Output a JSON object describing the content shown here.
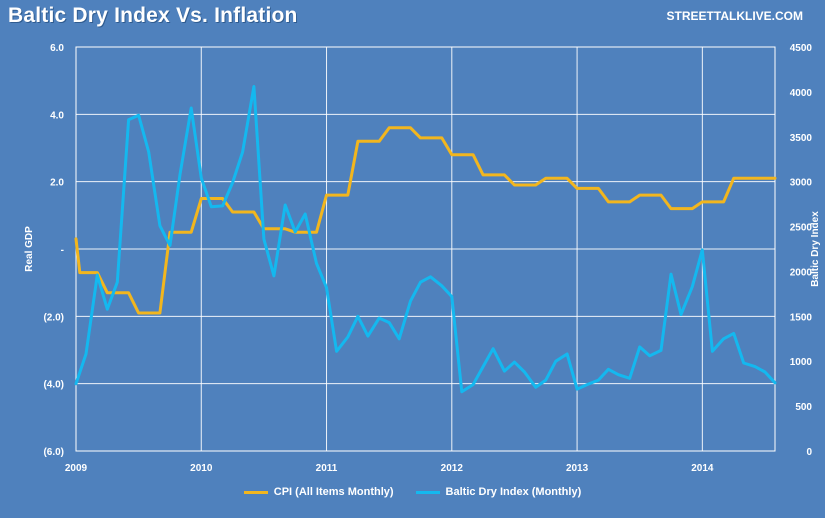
{
  "header": {
    "title": "Baltic Dry Index Vs. Inflation",
    "brand": "STREETTALKLIVE.COM"
  },
  "colors": {
    "background": "#4f81bd",
    "plot_area": "#4f81bd",
    "grid": "#ffffff",
    "cpi": "#f2b61e",
    "bdi": "#14b8ef"
  },
  "chart_data": {
    "type": "line",
    "title": "Baltic Dry Index Vs. Inflation",
    "xlabel": "",
    "ylabel_left": "Real GDP",
    "ylabel_right": "Baltic Dry Index",
    "x_ticks": [
      "2009",
      "2010",
      "2011",
      "2012",
      "2013",
      "2014"
    ],
    "x_range": [
      2009.0,
      2014.58
    ],
    "y_left_range": [
      -6.0,
      6.0
    ],
    "y_left_ticks": [
      {
        "value": 6.0,
        "label": "6.0"
      },
      {
        "value": 4.0,
        "label": "4.0"
      },
      {
        "value": 2.0,
        "label": "2.0"
      },
      {
        "value": 0.0,
        "label": "-"
      },
      {
        "value": -2.0,
        "label": "(2.0)"
      },
      {
        "value": -4.0,
        "label": "(4.0)"
      },
      {
        "value": -6.0,
        "label": "(6.0)"
      }
    ],
    "y_right_range": [
      0,
      4500
    ],
    "y_right_ticks": [
      "4500",
      "4000",
      "3500",
      "3000",
      "2500",
      "2000",
      "1500",
      "1000",
      "500",
      "0"
    ],
    "grid": true,
    "legend_position": "bottom",
    "series": [
      {
        "name": "CPI (All Items Monthly)",
        "axis": "left",
        "color": "#f2b61e",
        "x": [
          2009.0,
          2009.03,
          2009.17,
          2009.25,
          2009.42,
          2009.5,
          2009.67,
          2009.75,
          2009.92,
          2010.0,
          2010.17,
          2010.25,
          2010.42,
          2010.5,
          2010.67,
          2010.75,
          2010.92,
          2011.0,
          2011.17,
          2011.25,
          2011.42,
          2011.5,
          2011.67,
          2011.75,
          2011.92,
          2012.0,
          2012.17,
          2012.25,
          2012.42,
          2012.5,
          2012.67,
          2012.75,
          2012.92,
          2013.0,
          2013.17,
          2013.25,
          2013.42,
          2013.5,
          2013.67,
          2013.75,
          2013.92,
          2014.0,
          2014.17,
          2014.25,
          2014.42,
          2014.58
        ],
        "y": [
          0.3,
          -0.7,
          -0.7,
          -1.3,
          -1.3,
          -1.9,
          -1.9,
          0.5,
          0.5,
          1.5,
          1.5,
          1.1,
          1.1,
          0.6,
          0.6,
          0.5,
          0.5,
          1.6,
          1.6,
          3.2,
          3.2,
          3.6,
          3.6,
          3.3,
          3.3,
          2.8,
          2.8,
          2.2,
          2.2,
          1.9,
          1.9,
          2.1,
          2.1,
          1.8,
          1.8,
          1.4,
          1.4,
          1.6,
          1.6,
          1.2,
          1.2,
          1.4,
          1.4,
          2.1,
          2.1,
          2.1
        ]
      },
      {
        "name": "Baltic Dry Index (Monthly)",
        "axis": "right",
        "color": "#14b8ef",
        "x": [
          2009.0,
          2009.08,
          2009.17,
          2009.25,
          2009.33,
          2009.42,
          2009.5,
          2009.58,
          2009.67,
          2009.75,
          2009.83,
          2009.92,
          2010.0,
          2010.08,
          2010.17,
          2010.25,
          2010.33,
          2010.42,
          2010.5,
          2010.58,
          2010.67,
          2010.75,
          2010.83,
          2010.92,
          2011.0,
          2011.08,
          2011.17,
          2011.25,
          2011.33,
          2011.42,
          2011.5,
          2011.58,
          2011.67,
          2011.75,
          2011.83,
          2011.92,
          2012.0,
          2012.08,
          2012.17,
          2012.25,
          2012.33,
          2012.42,
          2012.5,
          2012.58,
          2012.67,
          2012.75,
          2012.83,
          2012.92,
          2013.0,
          2013.08,
          2013.17,
          2013.25,
          2013.33,
          2013.42,
          2013.5,
          2013.58,
          2013.67,
          2013.75,
          2013.83,
          2013.92,
          2014.0,
          2014.08,
          2014.17,
          2014.25,
          2014.33,
          2014.42,
          2014.5,
          2014.58
        ],
        "y": [
          750,
          1080,
          1960,
          1580,
          1880,
          3690,
          3740,
          3330,
          2510,
          2290,
          3080,
          3820,
          3040,
          2720,
          2730,
          2990,
          3330,
          4060,
          2360,
          1950,
          2740,
          2440,
          2640,
          2090,
          1820,
          1110,
          1270,
          1500,
          1280,
          1480,
          1430,
          1250,
          1670,
          1880,
          1940,
          1840,
          1720,
          660,
          740,
          940,
          1140,
          890,
          990,
          880,
          710,
          790,
          1000,
          1080,
          690,
          740,
          790,
          910,
          850,
          810,
          1160,
          1060,
          1120,
          1970,
          1520,
          1830,
          2240,
          1110,
          1250,
          1310,
          980,
          940,
          880,
          760
        ]
      }
    ]
  },
  "legend": {
    "items": [
      {
        "label": "CPI (All Items Monthly)",
        "color": "#f2b61e"
      },
      {
        "label": "Baltic Dry Index (Monthly)",
        "color": "#14b8ef"
      }
    ]
  }
}
